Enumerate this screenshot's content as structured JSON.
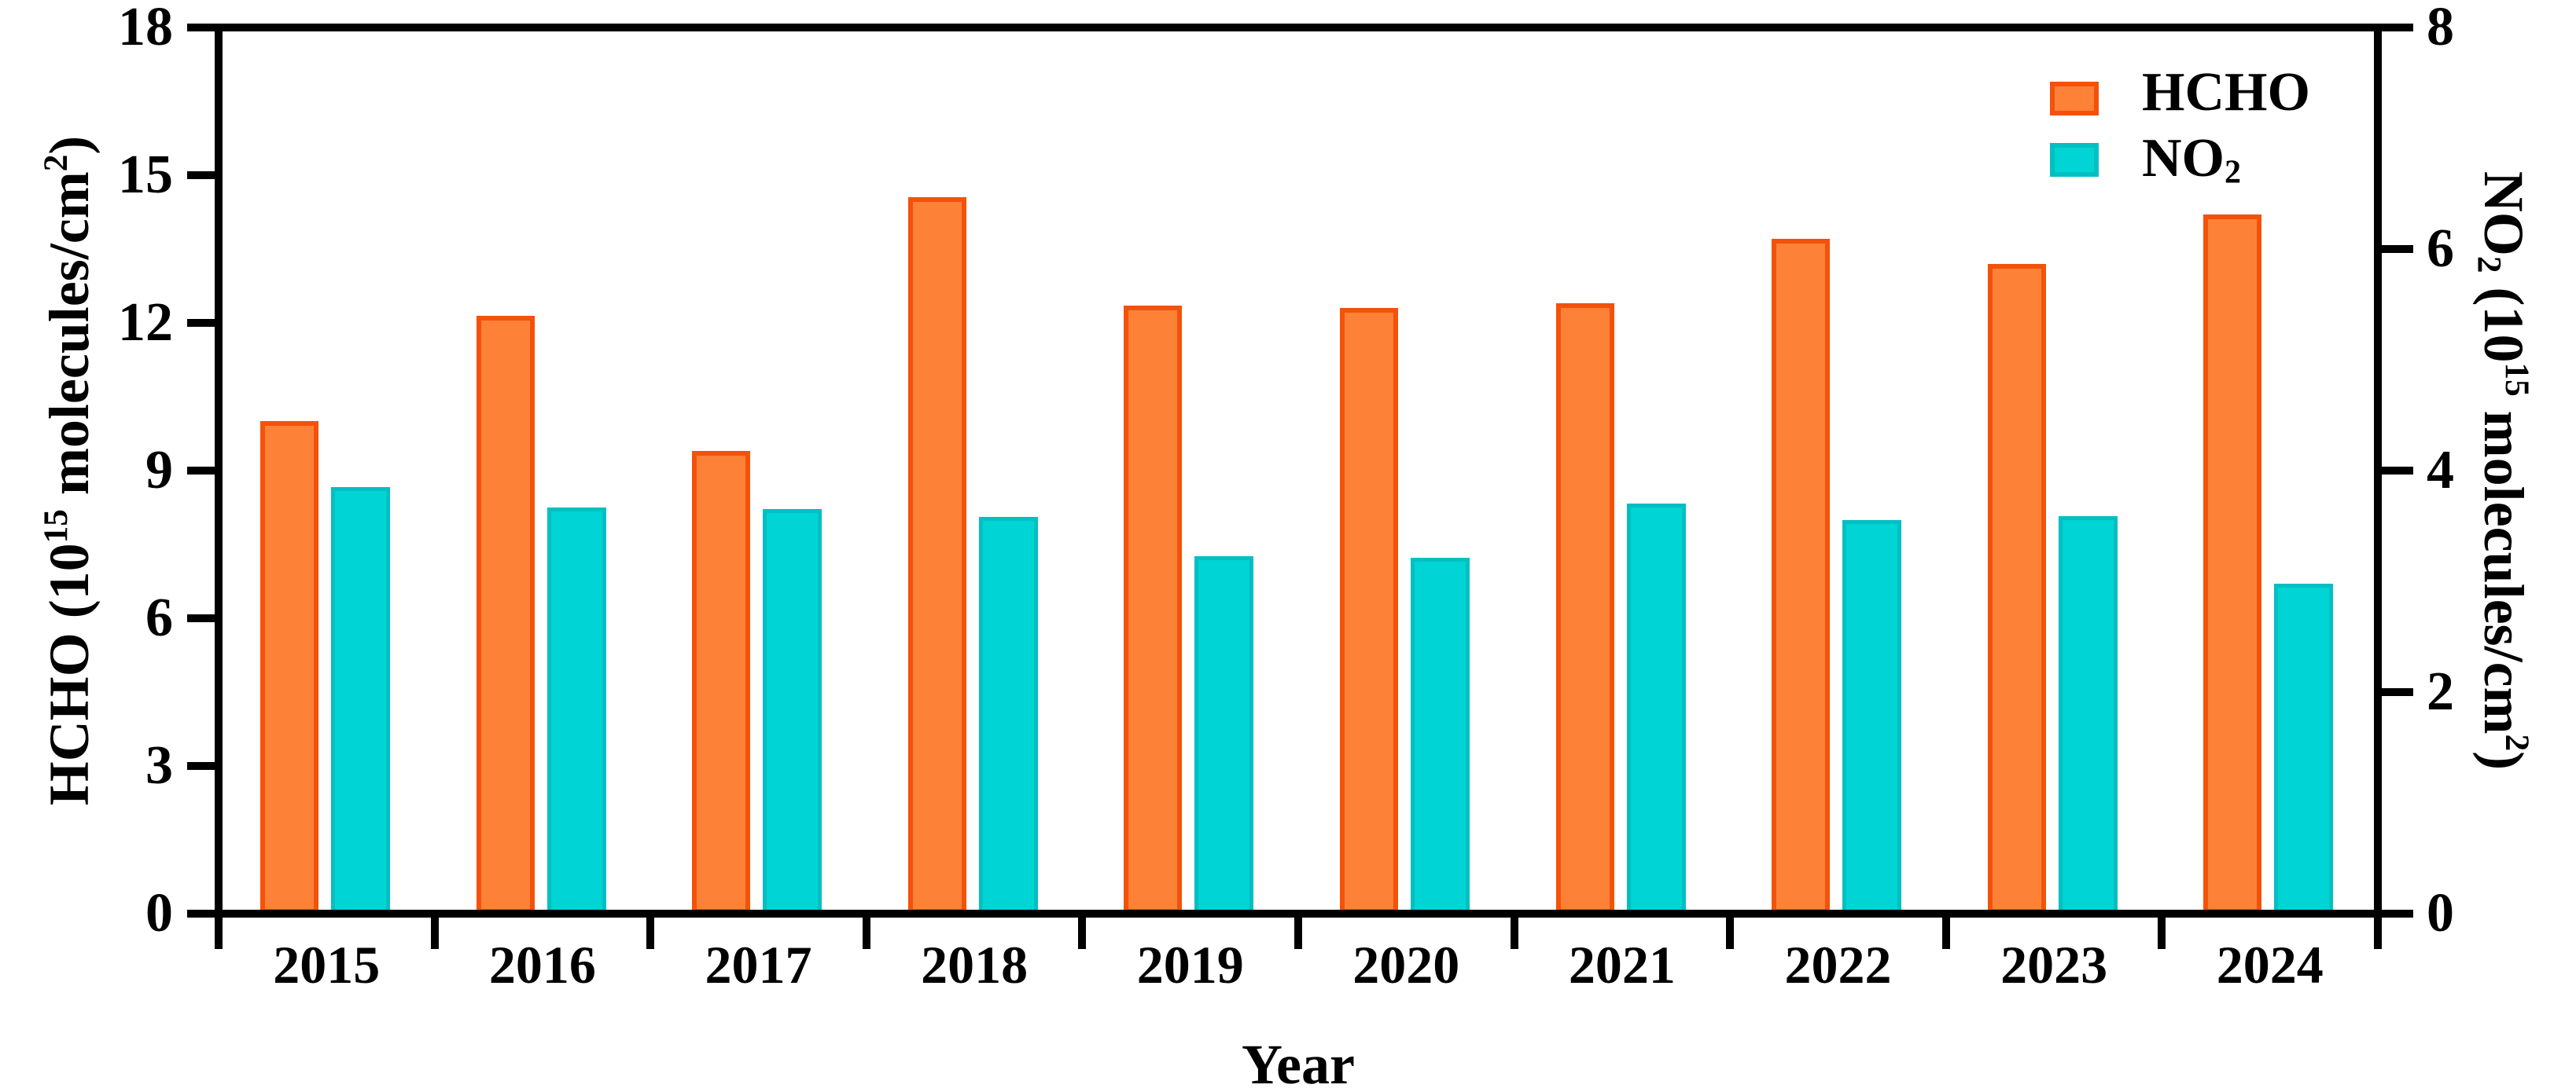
{
  "figure": {
    "background": "#ffffff",
    "frame_color": "#000000",
    "text_color": "#000000"
  },
  "chart_data": {
    "type": "bar",
    "title": "",
    "categories": [
      "2015",
      "2016",
      "2017",
      "2018",
      "2019",
      "2020",
      "2021",
      "2022",
      "2023",
      "2024"
    ],
    "xlabel": "Year",
    "grid": false,
    "legend_position": "top-right",
    "series": [
      {
        "name": "HCHO",
        "name_parts": [
          {
            "t": "HCHO"
          }
        ],
        "axis": "left",
        "fill": "#fd8238",
        "stroke": "#f4510a",
        "values": [
          10.0,
          12.15,
          9.4,
          14.55,
          12.35,
          12.3,
          12.4,
          13.7,
          13.2,
          14.2
        ]
      },
      {
        "name": "NO2",
        "name_parts": [
          {
            "t": "NO"
          },
          {
            "t": "2",
            "sub": true
          }
        ],
        "axis": "right",
        "fill": "#00d4d4",
        "stroke": "#02bfc2",
        "values": [
          3.85,
          3.67,
          3.65,
          3.58,
          3.23,
          3.21,
          3.7,
          3.55,
          3.59,
          2.98
        ]
      }
    ],
    "left_axis": {
      "range": [
        0,
        18
      ],
      "ticks": [
        0,
        3,
        6,
        9,
        12,
        15,
        18
      ],
      "title_parts": [
        {
          "t": "HCHO (10"
        },
        {
          "t": "15",
          "sup": true
        },
        {
          "t": " molecules/cm"
        },
        {
          "t": "2",
          "sup": true
        },
        {
          "t": ")"
        }
      ]
    },
    "right_axis": {
      "range": [
        0,
        8
      ],
      "ticks": [
        0,
        2,
        4,
        6,
        8
      ],
      "title_parts": [
        {
          "t": "NO"
        },
        {
          "t": "2",
          "sub": true
        },
        {
          "t": " (10"
        },
        {
          "t": "15",
          "sup": true
        },
        {
          "t": " molecules/cm"
        },
        {
          "t": "2",
          "sup": true
        },
        {
          "t": ")"
        }
      ]
    }
  }
}
